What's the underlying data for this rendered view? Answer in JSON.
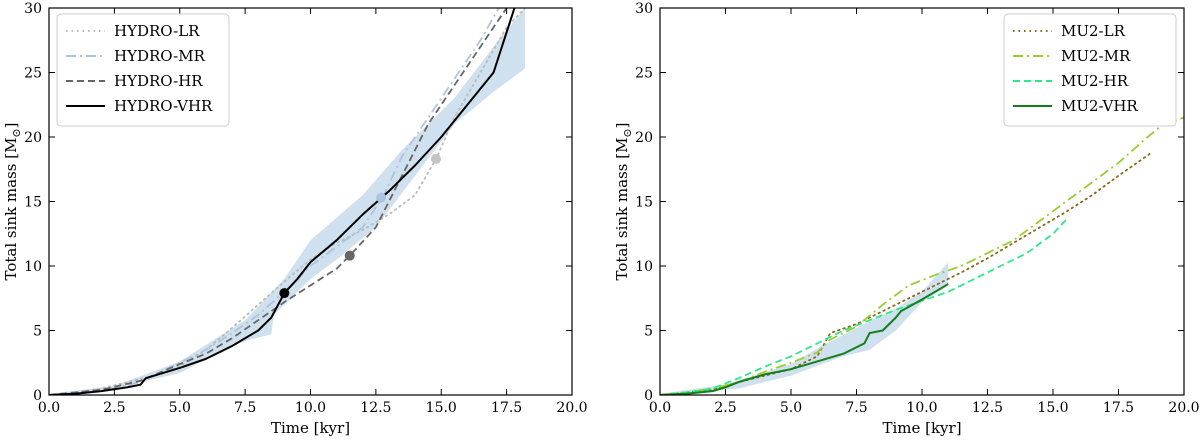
{
  "chart_data": [
    {
      "type": "line",
      "xlabel": "Time [kyr]",
      "ylabel": "Total sink mass [M",
      "ylabel_symbol": "⊙",
      "ylabel_close": "]",
      "xlim": [
        0,
        20
      ],
      "ylim": [
        0,
        30
      ],
      "xticks": [
        "0.0",
        "2.5",
        "5.0",
        "7.5",
        "10.0",
        "12.5",
        "15.0",
        "17.5",
        "20.0"
      ],
      "yticks": [
        "0",
        "5",
        "10",
        "15",
        "20",
        "25",
        "30"
      ],
      "legend_position": "top-left",
      "band": {
        "color": "#cfe0ee",
        "upper": [
          [
            0,
            0.1
          ],
          [
            2.5,
            0.7
          ],
          [
            5,
            2.6
          ],
          [
            7.5,
            5.8
          ],
          [
            9,
            9
          ],
          [
            10,
            12
          ],
          [
            12,
            15.5
          ],
          [
            13.5,
            19
          ],
          [
            15.5,
            23
          ],
          [
            17,
            27
          ],
          [
            18.2,
            30
          ]
        ],
        "lower": [
          [
            18.2,
            25.3
          ],
          [
            17,
            23.5
          ],
          [
            15.5,
            21
          ],
          [
            14,
            17
          ],
          [
            12.5,
            13
          ],
          [
            11,
            10.5
          ],
          [
            10,
            9
          ],
          [
            8.6,
            6.2
          ],
          [
            8.5,
            4.7
          ],
          [
            7.5,
            4.2
          ],
          [
            6,
            2.8
          ],
          [
            5,
            1.7
          ],
          [
            3.5,
            1
          ],
          [
            2,
            0.3
          ],
          [
            0,
            0
          ]
        ]
      },
      "series": [
        {
          "name": "HYDRO-LR",
          "color": "#bbbbbb",
          "dash": "dotted",
          "points": [
            [
              0,
              0
            ],
            [
              1,
              0.2
            ],
            [
              2,
              0.5
            ],
            [
              3,
              1
            ],
            [
              4,
              1.5
            ],
            [
              5,
              2.2
            ],
            [
              6,
              3.5
            ],
            [
              7,
              5.2
            ],
            [
              8,
              7
            ],
            [
              9,
              8.8
            ],
            [
              10,
              10.5
            ],
            [
              11,
              11.8
            ],
            [
              12,
              12.8
            ],
            [
              13,
              14
            ],
            [
              14,
              15.5
            ],
            [
              14.8,
              18.3
            ],
            [
              15.5,
              21.5
            ],
            [
              16.5,
              25
            ],
            [
              17.5,
              28.5
            ],
            [
              18.2,
              30
            ]
          ],
          "marker": [
            14.8,
            18.3
          ],
          "marker_color": "#c4c4c4"
        },
        {
          "name": "HYDRO-MR",
          "color": "#aec4dc",
          "dash": "dashdot",
          "points": [
            [
              0,
              0
            ],
            [
              2,
              0.3
            ],
            [
              3.5,
              1
            ],
            [
              5,
              2.5
            ],
            [
              6,
              3.5
            ],
            [
              7,
              4.8
            ],
            [
              8,
              6.2
            ],
            [
              9,
              8
            ],
            [
              10,
              10
            ],
            [
              11,
              11.5
            ],
            [
              12,
              13
            ],
            [
              12.8,
              15.5
            ],
            [
              13.5,
              18.5
            ],
            [
              14.5,
              21.5
            ],
            [
              15.5,
              24.5
            ],
            [
              16.5,
              27.5
            ],
            [
              17.2,
              30
            ]
          ],
          "marker": [
            12.7,
            15.3
          ],
          "marker_color": "#aec4dc"
        },
        {
          "name": "HYDRO-HR",
          "color": "#666666",
          "dash": "dashed",
          "points": [
            [
              0,
              0
            ],
            [
              2,
              0.4
            ],
            [
              3.5,
              1.1
            ],
            [
              5,
              2.4
            ],
            [
              6,
              3.2
            ],
            [
              7,
              4.4
            ],
            [
              8,
              5.8
            ],
            [
              9,
              7.2
            ],
            [
              10,
              8.5
            ],
            [
              11,
              9.8
            ],
            [
              11.5,
              10.8
            ],
            [
              12.5,
              13
            ],
            [
              13.5,
              17
            ],
            [
              14.5,
              21
            ],
            [
              15.5,
              24
            ],
            [
              16.5,
              27
            ],
            [
              17.5,
              30
            ]
          ],
          "marker": [
            11.5,
            10.8
          ],
          "marker_color": "#666666"
        },
        {
          "name": "HYDRO-VHR",
          "color": "#000000",
          "dash": "solid",
          "points": [
            [
              0,
              0
            ],
            [
              1,
              0.1
            ],
            [
              2,
              0.3
            ],
            [
              3,
              0.6
            ],
            [
              3.5,
              0.8
            ],
            [
              3.7,
              1.3
            ],
            [
              5,
              2.1
            ],
            [
              6,
              2.8
            ],
            [
              7,
              3.8
            ],
            [
              8,
              5
            ],
            [
              8.5,
              6
            ],
            [
              9,
              7.9
            ],
            [
              9.5,
              9
            ],
            [
              10,
              10.3
            ],
            [
              11,
              12
            ],
            [
              12,
              14
            ],
            [
              13,
              15.8
            ],
            [
              14,
              17.8
            ],
            [
              15,
              20
            ],
            [
              16,
              22.5
            ],
            [
              17,
              25
            ],
            [
              17.8,
              30
            ]
          ],
          "marker": [
            9,
            7.9
          ],
          "marker_color": "#000000"
        }
      ]
    },
    {
      "type": "line",
      "xlabel": "Time [kyr]",
      "ylabel": "Total sink mass [M",
      "ylabel_symbol": "⊙",
      "ylabel_close": "]",
      "xlim": [
        0,
        20
      ],
      "ylim": [
        0,
        30
      ],
      "xticks": [
        "0.0",
        "2.5",
        "5.0",
        "7.5",
        "10.0",
        "12.5",
        "15.0",
        "17.5",
        "20.0"
      ],
      "yticks": [
        "0",
        "5",
        "10",
        "15",
        "20",
        "25",
        "30"
      ],
      "legend_position": "top-right",
      "band": {
        "color": "#cfe0ee",
        "upper": [
          [
            0,
            0.1
          ],
          [
            2.5,
            0.8
          ],
          [
            5,
            2.4
          ],
          [
            6,
            3.6
          ],
          [
            7.5,
            5.2
          ],
          [
            9,
            6.7
          ],
          [
            10,
            8
          ],
          [
            11,
            10.3
          ]
        ],
        "lower": [
          [
            11,
            8.5
          ],
          [
            10,
            7.2
          ],
          [
            9,
            5
          ],
          [
            8,
            3.5
          ],
          [
            7,
            3
          ],
          [
            5,
            1.5
          ],
          [
            3,
            0.5
          ],
          [
            0,
            0
          ]
        ]
      },
      "series": [
        {
          "name": "MU2-LR",
          "color": "#8a6a1a",
          "dash": "dotted",
          "points": [
            [
              0,
              0
            ],
            [
              1,
              0.2
            ],
            [
              2,
              0.4
            ],
            [
              3,
              1
            ],
            [
              4,
              1.5
            ],
            [
              5,
              2
            ],
            [
              6,
              3
            ],
            [
              6.5,
              4.8
            ],
            [
              7.5,
              5.5
            ],
            [
              8.5,
              6.5
            ],
            [
              9.5,
              7.5
            ],
            [
              10.5,
              8.5
            ],
            [
              11.5,
              9.5
            ],
            [
              12.5,
              10.6
            ],
            [
              13.5,
              11.8
            ],
            [
              14.5,
              13
            ],
            [
              15.5,
              14.2
            ],
            [
              16.5,
              15.5
            ],
            [
              17.5,
              17
            ],
            [
              18.7,
              18.7
            ]
          ],
          "marker": null,
          "marker_color": ""
        },
        {
          "name": "MU2-MR",
          "color": "#9acd32",
          "dash": "dashdot",
          "points": [
            [
              0,
              0
            ],
            [
              1,
              0.2
            ],
            [
              2,
              0.5
            ],
            [
              3,
              1
            ],
            [
              4,
              1.8
            ],
            [
              5,
              2.5
            ],
            [
              6,
              3.3
            ],
            [
              6.5,
              4.3
            ],
            [
              7.5,
              5.3
            ],
            [
              8.5,
              7
            ],
            [
              9.5,
              8.5
            ],
            [
              10.5,
              9.3
            ],
            [
              11.5,
              10
            ],
            [
              12.5,
              11
            ],
            [
              13.5,
              12
            ],
            [
              14.5,
              13.5
            ],
            [
              15.5,
              15
            ],
            [
              16.5,
              16.5
            ],
            [
              17.5,
              18
            ],
            [
              18.5,
              19.8
            ],
            [
              19.2,
              21
            ],
            [
              20,
              21.5
            ]
          ],
          "marker": null,
          "marker_color": ""
        },
        {
          "name": "MU2-HR",
          "color": "#2ee88a",
          "dash": "dashed",
          "points": [
            [
              0,
              0
            ],
            [
              1,
              0.2
            ],
            [
              2,
              0.5
            ],
            [
              3,
              1.3
            ],
            [
              4,
              2.2
            ],
            [
              5,
              3
            ],
            [
              6,
              4
            ],
            [
              7,
              5
            ],
            [
              8,
              5.8
            ],
            [
              9,
              6.6
            ],
            [
              10,
              7.3
            ],
            [
              11,
              8
            ],
            [
              12,
              9
            ],
            [
              13,
              10
            ],
            [
              14,
              11
            ],
            [
              15,
              12.5
            ],
            [
              15.6,
              13.8
            ]
          ],
          "marker": null,
          "marker_color": ""
        },
        {
          "name": "MU2-VHR",
          "color": "#137e1a",
          "dash": "solid",
          "points": [
            [
              0,
              0
            ],
            [
              1,
              0.1
            ],
            [
              2,
              0.3
            ],
            [
              2.5,
              0.6
            ],
            [
              3,
              1
            ],
            [
              4,
              1.6
            ],
            [
              5,
              2
            ],
            [
              6,
              2.6
            ],
            [
              7,
              3.2
            ],
            [
              7.8,
              4
            ],
            [
              8,
              4.8
            ],
            [
              8.5,
              5
            ],
            [
              9,
              6
            ],
            [
              9.2,
              6.5
            ],
            [
              10,
              7.4
            ],
            [
              11,
              8.6
            ]
          ],
          "marker": null,
          "marker_color": ""
        }
      ]
    }
  ]
}
